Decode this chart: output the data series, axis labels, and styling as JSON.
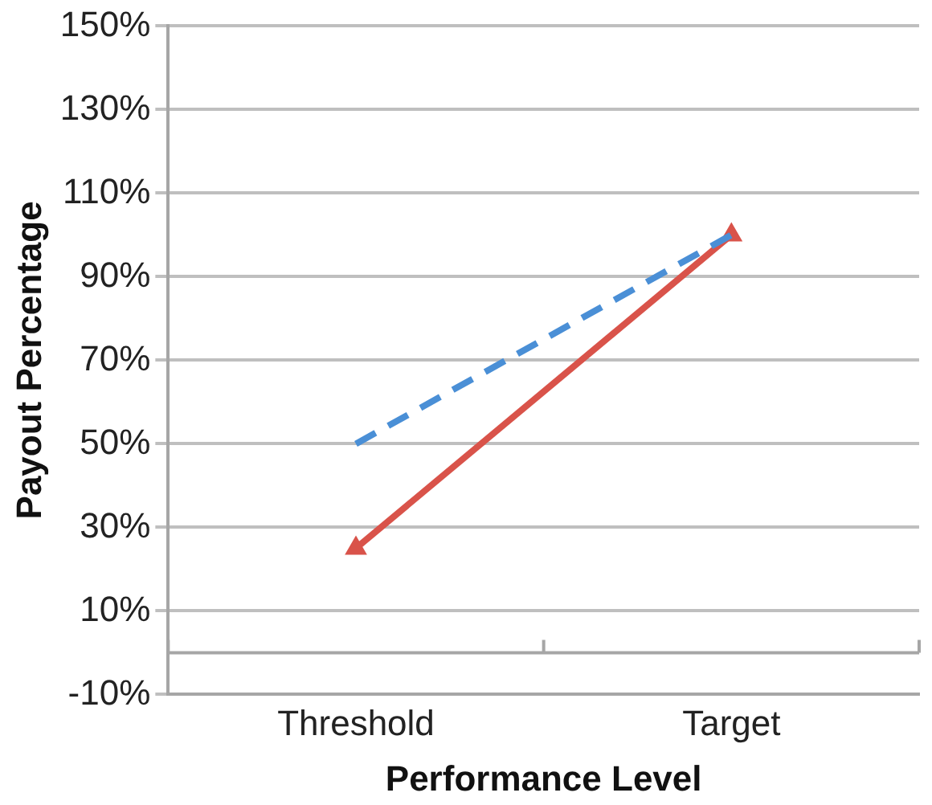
{
  "chart_data": {
    "type": "line",
    "xlabel": "Performance Level",
    "ylabel": "Payout Percentage",
    "categories": [
      "Threshold",
      "Target"
    ],
    "series": [
      {
        "color": "#4a8fd6",
        "values": [
          50,
          100
        ],
        "line_style": "dashed",
        "marker": "none"
      },
      {
        "color": "#d9534a",
        "values": [
          25,
          100
        ],
        "line_style": "solid",
        "marker": "triangle"
      }
    ],
    "ylim": [
      -10,
      150
    ],
    "yticks": [
      {
        "value": -10,
        "label": "-10%"
      },
      {
        "value": 10,
        "label": "10%"
      },
      {
        "value": 30,
        "label": "30%"
      },
      {
        "value": 50,
        "label": "50%"
      },
      {
        "value": 70,
        "label": "70%"
      },
      {
        "value": 90,
        "label": "90%"
      },
      {
        "value": 110,
        "label": "110%"
      },
      {
        "value": 130,
        "label": "130%"
      },
      {
        "value": 150,
        "label": "150%"
      }
    ],
    "ref_lines": [
      {
        "axis": "y",
        "value": 0,
        "color": "#a6a6a6"
      }
    ],
    "grid": "y",
    "legend": false
  }
}
